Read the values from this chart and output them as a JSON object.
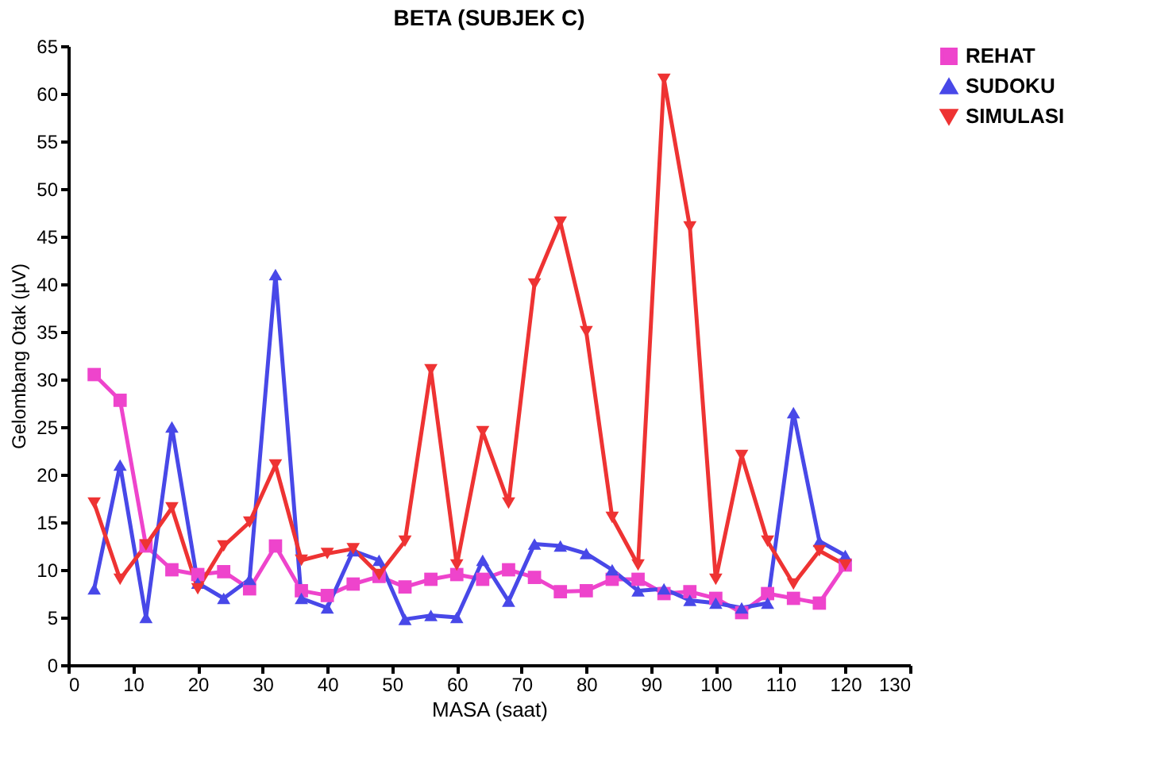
{
  "chart_data": {
    "type": "line",
    "title": "BETA (SUBJEK C)",
    "xlabel": "MASA (saat)",
    "ylabel": "Gelombang Otak (µV)",
    "x": [
      4,
      8,
      12,
      16,
      20,
      24,
      28,
      32,
      36,
      40,
      44,
      48,
      52,
      56,
      60,
      64,
      68,
      72,
      76,
      80,
      84,
      88,
      92,
      96,
      100,
      104,
      108,
      112,
      116,
      120
    ],
    "series": [
      {
        "name": "REHAT",
        "color": "#ee44cc",
        "marker": "square",
        "values": [
          30.5,
          27.8,
          12.5,
          10,
          9.5,
          9.8,
          8,
          12.5,
          7.8,
          7.3,
          8.5,
          9.3,
          8.2,
          9,
          9.5,
          9,
          10,
          9.2,
          7.7,
          7.8,
          9,
          9,
          7.5,
          7.7,
          7,
          5.5,
          7.5,
          7,
          6.5,
          10.5
        ]
      },
      {
        "name": "SUDOKU",
        "color": "#4848e8",
        "marker": "triangle-up",
        "values": [
          8,
          21,
          5,
          25,
          8.6,
          7,
          9,
          41,
          7,
          6,
          12,
          11,
          4.8,
          5.2,
          5,
          11,
          6.7,
          12.7,
          12.5,
          11.7,
          10,
          7.8,
          8,
          6.8,
          6.5,
          6,
          6.5,
          26.5,
          13,
          11.5
        ]
      },
      {
        "name": "SIMULASI",
        "color": "#ee3333",
        "marker": "triangle-down",
        "values": [
          17,
          9,
          12.6,
          16.5,
          8,
          12.5,
          15,
          21,
          11,
          11.7,
          12.2,
          9.5,
          13,
          31,
          10.5,
          24.5,
          17,
          40,
          46.5,
          35,
          15.5,
          10.5,
          61.5,
          46,
          9,
          22,
          13,
          8.5,
          12,
          10.5
        ]
      }
    ],
    "xlim": [
      0,
      130
    ],
    "xticks": [
      0,
      10,
      20,
      30,
      40,
      50,
      60,
      70,
      80,
      90,
      100,
      110,
      120,
      130
    ],
    "ylim": [
      0,
      65
    ],
    "yticks": [
      0,
      5,
      10,
      15,
      20,
      25,
      30,
      35,
      40,
      45,
      50,
      55,
      60,
      65
    ],
    "grid": false,
    "legend": "right",
    "line_style": "solid"
  }
}
